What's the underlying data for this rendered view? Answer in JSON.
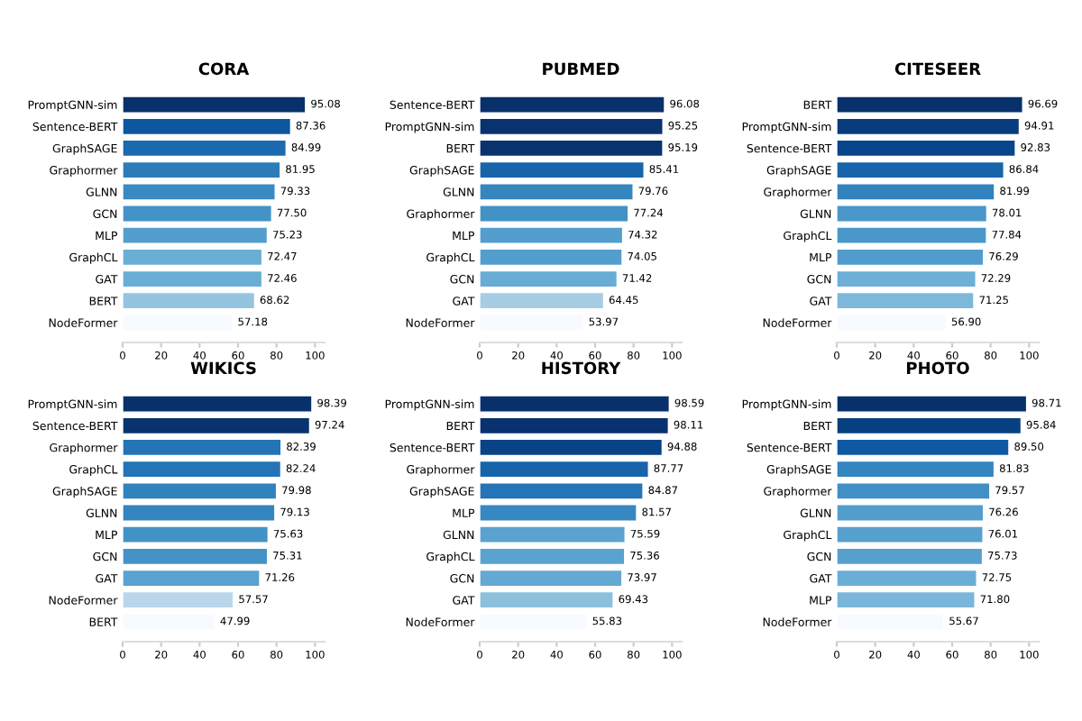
{
  "chart_data": [
    {
      "type": "bar",
      "orientation": "horizontal",
      "title": "CORA",
      "categories": [
        "PromptGNN-sim",
        "Sentence-BERT",
        "GraphSAGE",
        "Graphormer",
        "GLNN",
        "GCN",
        "MLP",
        "GraphCL",
        "GAT",
        "BERT",
        "NodeFormer"
      ],
      "values": [
        95.08,
        87.36,
        84.99,
        81.95,
        79.33,
        77.5,
        75.23,
        72.47,
        72.46,
        68.62,
        57.18
      ],
      "value_labels": [
        "95.08",
        "87.36",
        "84.99",
        "81.95",
        "79.33",
        "77.50",
        "75.23",
        "72.47",
        "72.46",
        "68.62",
        "57.18"
      ],
      "colors": [
        "#08306b",
        "#0d57a1",
        "#1b69af",
        "#2c7cba",
        "#3a8ac2",
        "#4493c7",
        "#539ecd",
        "#6aaed6",
        "#6aaed6",
        "#94c4df",
        "#f7fbff"
      ],
      "xlim": [
        0,
        105
      ],
      "xticks": [
        0,
        20,
        40,
        60,
        80,
        100
      ]
    },
    {
      "type": "bar",
      "orientation": "horizontal",
      "title": "PUBMED",
      "categories": [
        "Sentence-BERT",
        "PromptGNN-sim",
        "BERT",
        "GraphSAGE",
        "GLNN",
        "Graphormer",
        "MLP",
        "GraphCL",
        "GCN",
        "GAT",
        "NodeFormer"
      ],
      "values": [
        96.08,
        95.25,
        95.19,
        85.41,
        79.76,
        77.24,
        74.32,
        74.05,
        71.42,
        64.45,
        53.97
      ],
      "value_labels": [
        "96.08",
        "95.25",
        "95.19",
        "85.41",
        "79.76",
        "77.24",
        "74.32",
        "74.05",
        "71.42",
        "64.45",
        "53.97"
      ],
      "colors": [
        "#08306b",
        "#08336f",
        "#08336f",
        "#1764ab",
        "#3585bf",
        "#4292c6",
        "#539ecd",
        "#539ecd",
        "#68acd5",
        "#a6cde4",
        "#f7fbff"
      ],
      "xlim": [
        0,
        105
      ],
      "xticks": [
        0,
        20,
        40,
        60,
        80,
        100
      ]
    },
    {
      "type": "bar",
      "orientation": "horizontal",
      "title": "CITESEER",
      "categories": [
        "BERT",
        "PromptGNN-sim",
        "Sentence-BERT",
        "GraphSAGE",
        "Graphormer",
        "GLNN",
        "GraphCL",
        "MLP",
        "GCN",
        "GAT",
        "NodeFormer"
      ],
      "values": [
        96.69,
        94.91,
        92.83,
        86.84,
        81.99,
        78.01,
        77.84,
        76.29,
        72.29,
        71.25,
        56.9
      ],
      "value_labels": [
        "96.69",
        "94.91",
        "92.83",
        "86.84",
        "81.99",
        "78.01",
        "77.84",
        "76.29",
        "72.29",
        "71.25",
        "56.90"
      ],
      "colors": [
        "#08306b",
        "#083c7d",
        "#08458a",
        "#1764ab",
        "#3282be",
        "#4a98c9",
        "#4a98c9",
        "#519ccc",
        "#6dafd7",
        "#7db8da",
        "#f7fbff"
      ],
      "xlim": [
        0,
        105
      ],
      "xticks": [
        0,
        20,
        40,
        60,
        80,
        100
      ]
    },
    {
      "type": "bar",
      "orientation": "horizontal",
      "title": "WIKICS",
      "categories": [
        "PromptGNN-sim",
        "Sentence-BERT",
        "Graphormer",
        "GraphCL",
        "GraphSAGE",
        "GLNN",
        "MLP",
        "GCN",
        "GAT",
        "NodeFormer",
        "BERT"
      ],
      "values": [
        98.39,
        97.24,
        82.39,
        82.24,
        79.98,
        79.13,
        75.63,
        75.31,
        71.26,
        57.57,
        47.99
      ],
      "value_labels": [
        "98.39",
        "97.24",
        "82.39",
        "82.24",
        "79.98",
        "79.13",
        "75.63",
        "75.31",
        "71.26",
        "57.57",
        "47.99"
      ],
      "colors": [
        "#08306b",
        "#08336f",
        "#2474b7",
        "#2474b7",
        "#3282be",
        "#3484bf",
        "#4292c6",
        "#4493c7",
        "#5aa2cf",
        "#bad6eb",
        "#f7fbff"
      ],
      "xlim": [
        0,
        105
      ],
      "xticks": [
        0,
        20,
        40,
        60,
        80,
        100
      ]
    },
    {
      "type": "bar",
      "orientation": "horizontal",
      "title": "HISTORY",
      "categories": [
        "PromptGNN-sim",
        "BERT",
        "Sentence-BERT",
        "Graphormer",
        "GraphSAGE",
        "MLP",
        "GLNN",
        "GraphCL",
        "GCN",
        "GAT",
        "NodeFormer"
      ],
      "values": [
        98.59,
        98.11,
        94.88,
        87.77,
        84.87,
        81.57,
        75.59,
        75.36,
        73.97,
        69.43,
        55.83
      ],
      "value_labels": [
        "98.59",
        "98.11",
        "94.88",
        "87.77",
        "84.87",
        "81.57",
        "75.59",
        "75.36",
        "73.97",
        "69.43",
        "55.83"
      ],
      "colors": [
        "#08306b",
        "#083170",
        "#084387",
        "#1764ab",
        "#2474b7",
        "#3787c0",
        "#5aa2cf",
        "#5aa2cf",
        "#64a9d3",
        "#8cc0dd",
        "#f7fbff"
      ],
      "xlim": [
        0,
        105
      ],
      "xticks": [
        0,
        20,
        40,
        60,
        80,
        100
      ]
    },
    {
      "type": "bar",
      "orientation": "horizontal",
      "title": "PHOTO",
      "categories": [
        "PromptGNN-sim",
        "BERT",
        "Sentence-BERT",
        "GraphSAGE",
        "Graphormer",
        "GLNN",
        "GraphCL",
        "GCN",
        "GAT",
        "MLP",
        "NodeFormer"
      ],
      "values": [
        98.71,
        95.84,
        89.5,
        81.83,
        79.57,
        76.26,
        76.01,
        75.73,
        72.75,
        71.8,
        55.67
      ],
      "value_labels": [
        "98.71",
        "95.84",
        "89.50",
        "81.83",
        "79.57",
        "76.26",
        "76.01",
        "75.73",
        "72.75",
        "71.80",
        "55.67"
      ],
      "colors": [
        "#08306b",
        "#083f80",
        "#0f59a3",
        "#3585bf",
        "#4090c5",
        "#539ecd",
        "#56a0ce",
        "#56a0ce",
        "#6aaed6",
        "#7ab6d9",
        "#f7fbff"
      ],
      "xlim": [
        0,
        105
      ],
      "xticks": [
        0,
        20,
        40,
        60,
        80,
        100
      ]
    }
  ]
}
